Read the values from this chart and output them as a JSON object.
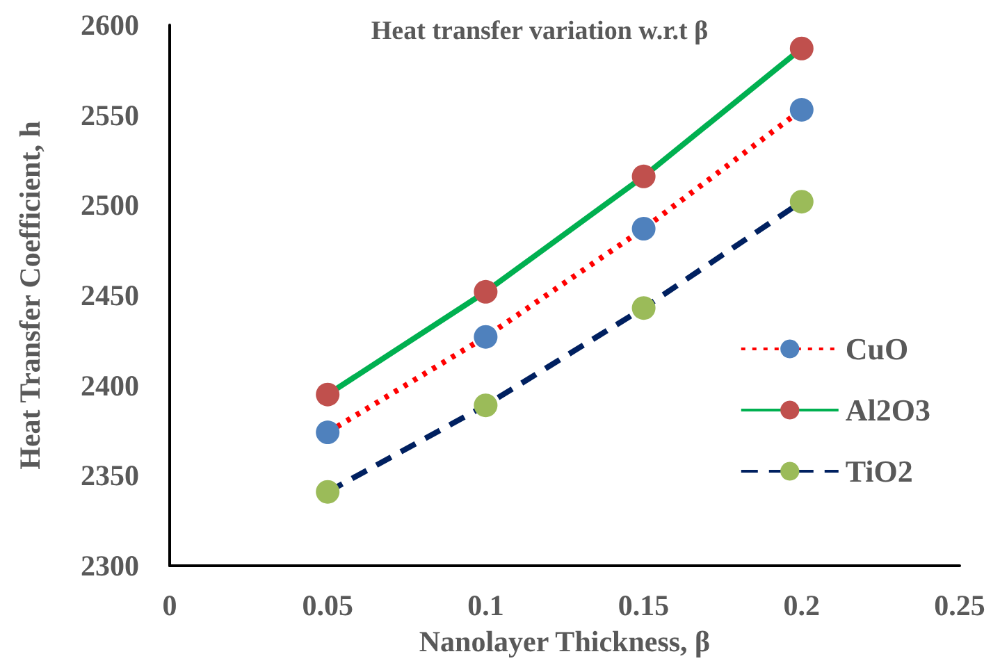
{
  "chart_data": {
    "type": "line",
    "title": "Heat transfer variation w.r.t β",
    "xlabel": "Nanolayer Thickness, β",
    "ylabel": "Heat Transfer Coefficient, h",
    "x": [
      0.05,
      0.1,
      0.15,
      0.2
    ],
    "series": [
      {
        "name": "CuO",
        "color": "#ff0000",
        "colors": [
          "#4f81bd",
          "#4f81bd",
          "#4f81bd",
          "#4f81bd"
        ],
        "line_style": "dotted",
        "values": [
          2374,
          2427,
          2487,
          2553
        ]
      },
      {
        "name": "Al2O3",
        "color": "#00b050",
        "colors": [
          "#c0504d",
          "#c0504d",
          "#c0504d",
          "#c0504d"
        ],
        "line_style": "solid",
        "values": [
          2395,
          2452,
          2516,
          2587
        ]
      },
      {
        "name": "TiO2",
        "color": "#002060",
        "colors": [
          "#9bbb59",
          "#9bbb59",
          "#9bbb59",
          "#9bbb59"
        ],
        "line_style": "dashed",
        "values": [
          2341,
          2389,
          2443,
          2502
        ]
      }
    ],
    "marker": "circle",
    "xlim": [
      0,
      0.25
    ],
    "xticks": [
      0,
      0.05,
      0.1,
      0.15,
      0.2,
      0.25
    ],
    "ylim": [
      2300,
      2600
    ],
    "yticks": [
      2300,
      2350,
      2400,
      2450,
      2500,
      2550,
      2600
    ],
    "grid": false,
    "legend": "right"
  }
}
